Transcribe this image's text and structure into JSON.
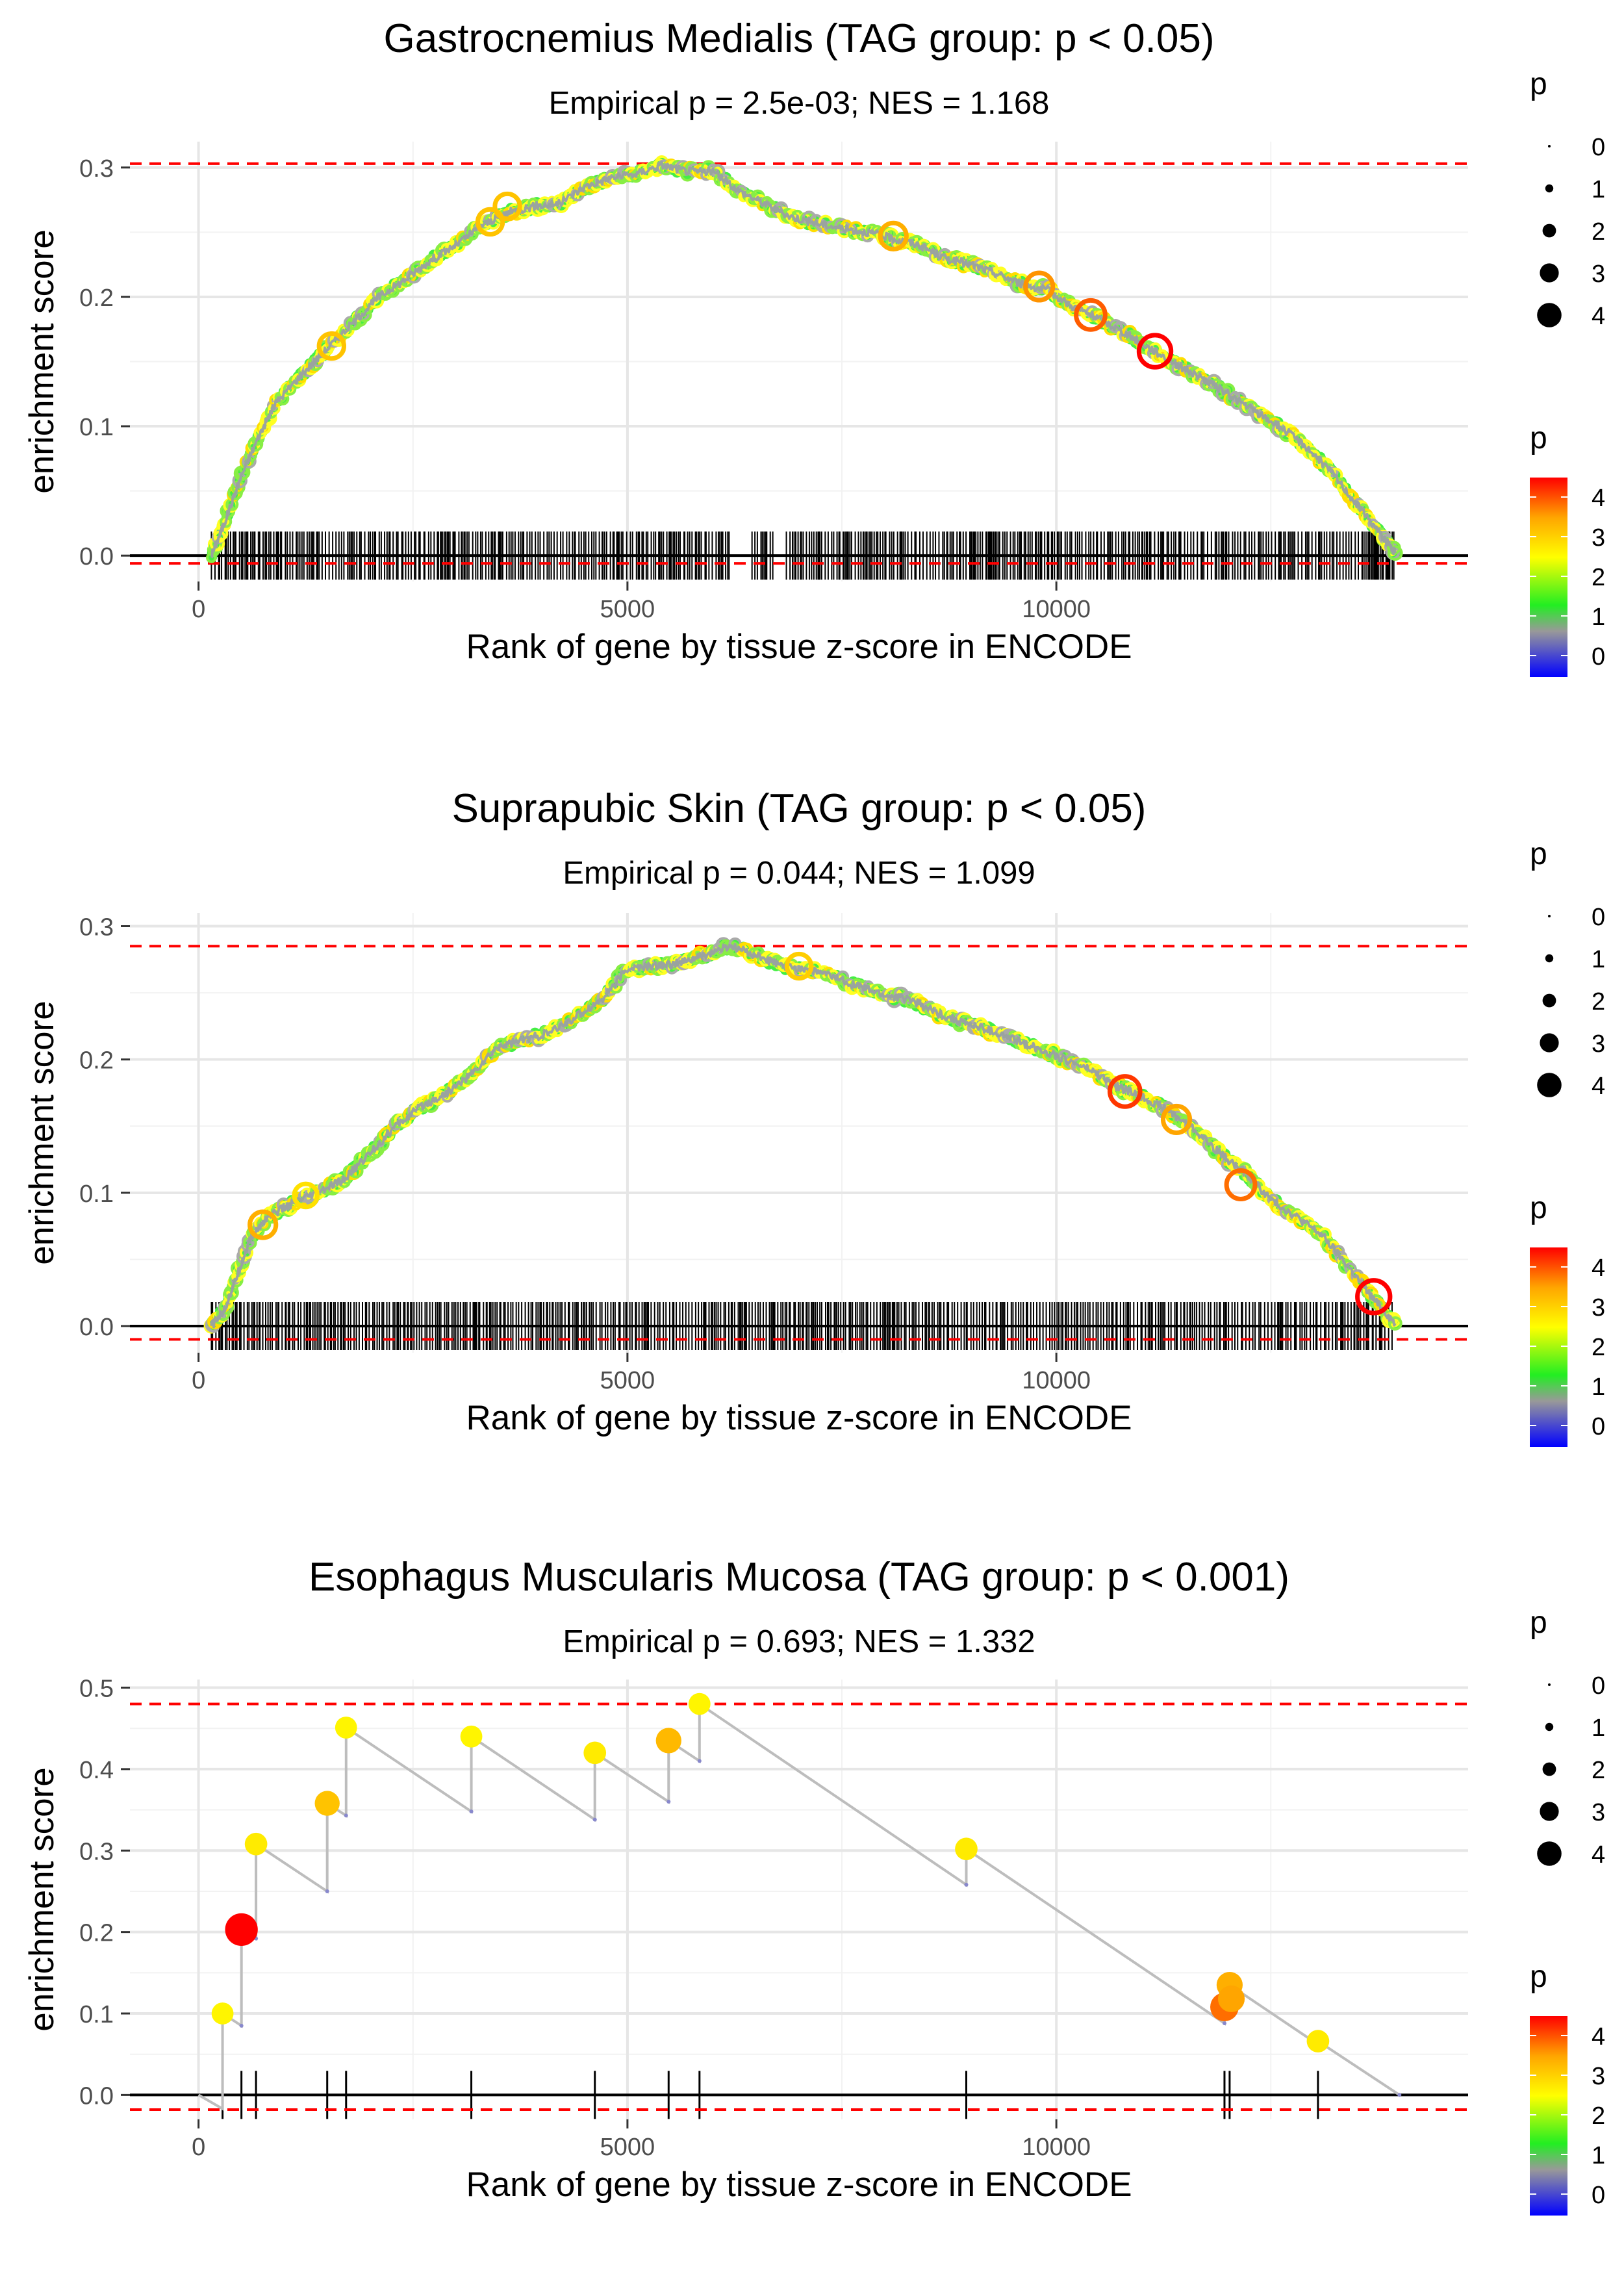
{
  "chart_data": [
    {
      "type": "line",
      "title": "Gastrocnemius Medialis (TAG group: p < 0.05)",
      "subtitle": "Empirical p = 2.5e-03; NES = 1.168",
      "xlabel": "Rank of gene by tissue z-score in ENCODE",
      "ylabel": "enrichment score",
      "xlim": [
        -800,
        14800
      ],
      "ylim": [
        -0.02,
        0.32
      ],
      "x_ticks": [
        0,
        5000,
        10000
      ],
      "x_tick_labels": [
        "0",
        "5000",
        "10000"
      ],
      "y_ticks": [
        0.0,
        0.1,
        0.2,
        0.3
      ],
      "y_tick_labels": [
        "0.0",
        "0.1",
        "0.2",
        "0.3"
      ],
      "hlines": {
        "max_es": 0.303,
        "min_es": -0.006
      },
      "dense": true,
      "x": [
        150,
        300,
        500,
        700,
        900,
        1200,
        1500,
        1800,
        2100,
        2400,
        2700,
        3000,
        3300,
        3600,
        3900,
        4200,
        4500,
        4800,
        5100,
        5400,
        5700,
        6000,
        6300,
        6600,
        6900,
        7200,
        7500,
        7800,
        8100,
        8400,
        8700,
        9000,
        9300,
        9600,
        9900,
        10200,
        10500,
        10800,
        11100,
        11400,
        11700,
        12000,
        12300,
        12600,
        12900,
        13200,
        13500,
        13800,
        13950
      ],
      "y": [
        0.0,
        0.025,
        0.062,
        0.092,
        0.118,
        0.14,
        0.16,
        0.18,
        0.2,
        0.213,
        0.228,
        0.24,
        0.255,
        0.265,
        0.27,
        0.272,
        0.285,
        0.292,
        0.295,
        0.302,
        0.297,
        0.297,
        0.282,
        0.272,
        0.262,
        0.257,
        0.253,
        0.25,
        0.245,
        0.24,
        0.23,
        0.225,
        0.218,
        0.21,
        0.205,
        0.192,
        0.183,
        0.172,
        0.16,
        0.148,
        0.137,
        0.125,
        0.112,
        0.1,
        0.085,
        0.065,
        0.04,
        0.015,
        0.002
      ],
      "highlight_points": [
        {
          "x": 1550,
          "y": 0.162,
          "p": 3.3
        },
        {
          "x": 3400,
          "y": 0.258,
          "p": 3.3
        },
        {
          "x": 3600,
          "y": 0.27,
          "p": 3.3
        },
        {
          "x": 8100,
          "y": 0.247,
          "p": 3.5
        },
        {
          "x": 9800,
          "y": 0.208,
          "p": 3.7
        },
        {
          "x": 10400,
          "y": 0.186,
          "p": 4.0
        },
        {
          "x": 11150,
          "y": 0.158,
          "p": 4.5
        }
      ],
      "rug_range": [
        150,
        13950
      ],
      "rug_gaps": [
        [
          6200,
          6450
        ],
        [
          6700,
          6850
        ]
      ],
      "legend_size": {
        "title": "p",
        "labels": [
          "0",
          "1",
          "2",
          "3",
          "4"
        ]
      },
      "legend_color": {
        "title": "p",
        "labels": [
          "4",
          "3",
          "2",
          "1",
          "0"
        ]
      }
    },
    {
      "type": "line",
      "title": "Suprapubic Skin (TAG group: p < 0.05)",
      "subtitle": "Empirical p = 0.044; NES = 1.099",
      "xlabel": "Rank of gene by tissue z-score in ENCODE",
      "ylabel": "enrichment score",
      "xlim": [
        -800,
        14800
      ],
      "ylim": [
        -0.02,
        0.31
      ],
      "x_ticks": [
        0,
        5000,
        10000
      ],
      "x_tick_labels": [
        "0",
        "5000",
        "10000"
      ],
      "y_ticks": [
        0.0,
        0.1,
        0.2,
        0.3
      ],
      "y_tick_labels": [
        "0.0",
        "0.1",
        "0.2",
        "0.3"
      ],
      "hlines": {
        "max_es": 0.285,
        "min_es": -0.01
      },
      "dense": true,
      "x": [
        150,
        300,
        450,
        600,
        800,
        1100,
        1400,
        1700,
        2000,
        2300,
        2600,
        2900,
        3200,
        3500,
        3800,
        4100,
        4400,
        4700,
        5000,
        5300,
        5600,
        5900,
        6200,
        6500,
        6800,
        7100,
        7400,
        7700,
        8000,
        8300,
        8600,
        8900,
        9200,
        9500,
        9800,
        10100,
        10400,
        10700,
        11000,
        11300,
        11600,
        11900,
        12200,
        12500,
        12800,
        13100,
        13400,
        13700,
        13950
      ],
      "y": [
        0.0,
        0.012,
        0.038,
        0.065,
        0.082,
        0.092,
        0.1,
        0.11,
        0.13,
        0.15,
        0.165,
        0.175,
        0.19,
        0.21,
        0.215,
        0.22,
        0.232,
        0.245,
        0.268,
        0.27,
        0.272,
        0.278,
        0.285,
        0.278,
        0.27,
        0.268,
        0.262,
        0.255,
        0.248,
        0.245,
        0.235,
        0.228,
        0.222,
        0.215,
        0.208,
        0.2,
        0.192,
        0.18,
        0.172,
        0.162,
        0.148,
        0.13,
        0.115,
        0.095,
        0.082,
        0.068,
        0.045,
        0.02,
        0.002
      ],
      "highlight_points": [
        {
          "x": 750,
          "y": 0.076,
          "p": 3.5
        },
        {
          "x": 1250,
          "y": 0.098,
          "p": 3.0
        },
        {
          "x": 7000,
          "y": 0.27,
          "p": 3.2
        },
        {
          "x": 10800,
          "y": 0.176,
          "p": 4.2
        },
        {
          "x": 11400,
          "y": 0.155,
          "p": 3.6
        },
        {
          "x": 12150,
          "y": 0.106,
          "p": 3.9
        },
        {
          "x": 13700,
          "y": 0.022,
          "p": 4.6
        }
      ],
      "rug_range": [
        150,
        13950
      ],
      "rug_gaps": [],
      "legend_size": {
        "title": "p",
        "labels": [
          "0",
          "1",
          "2",
          "3",
          "4"
        ]
      },
      "legend_color": {
        "title": "p",
        "labels": [
          "4",
          "3",
          "2",
          "1",
          "0"
        ]
      }
    },
    {
      "type": "line",
      "title": "Esophagus Muscularis Mucosa (TAG group: p < 0.001)",
      "subtitle": "Empirical p = 0.693; NES = 1.332",
      "xlabel": "Rank of gene by tissue z-score in ENCODE",
      "ylabel": "enrichment score",
      "xlim": [
        -800,
        14800
      ],
      "ylim": [
        -0.03,
        0.51
      ],
      "x_ticks": [
        0,
        5000,
        10000
      ],
      "x_tick_labels": [
        "0",
        "5000",
        "10000"
      ],
      "y_ticks": [
        0.0,
        0.1,
        0.2,
        0.3,
        0.4,
        0.5
      ],
      "y_tick_labels": [
        "0.0",
        "0.1",
        "0.2",
        "0.3",
        "0.4",
        "0.5"
      ],
      "hlines": {
        "max_es": 0.48,
        "min_es": -0.018
      },
      "dense": false,
      "path": [
        [
          0,
          0.0
        ],
        [
          280,
          -0.017
        ],
        [
          280,
          0.1
        ],
        [
          500,
          0.085
        ],
        [
          500,
          0.203
        ],
        [
          670,
          0.192
        ],
        [
          670,
          0.308
        ],
        [
          1500,
          0.25
        ],
        [
          1500,
          0.358
        ],
        [
          1720,
          0.343
        ],
        [
          1720,
          0.451
        ],
        [
          3180,
          0.348
        ],
        [
          3180,
          0.44
        ],
        [
          4620,
          0.338
        ],
        [
          4620,
          0.42
        ],
        [
          5480,
          0.36
        ],
        [
          5480,
          0.435
        ],
        [
          5840,
          0.41
        ],
        [
          5840,
          0.48
        ],
        [
          8950,
          0.258
        ],
        [
          8950,
          0.302
        ],
        [
          11960,
          0.088
        ],
        [
          11960,
          0.108
        ],
        [
          12020,
          0.104
        ],
        [
          12020,
          0.135
        ],
        [
          13050,
          0.062
        ],
        [
          13050,
          0.066
        ],
        [
          14000,
          0.0
        ]
      ],
      "points": [
        {
          "x": 280,
          "y": 0.1,
          "p": 2.8
        },
        {
          "x": 500,
          "y": 0.203,
          "p": 4.6
        },
        {
          "x": 670,
          "y": 0.308,
          "p": 2.9
        },
        {
          "x": 1500,
          "y": 0.358,
          "p": 3.3
        },
        {
          "x": 1720,
          "y": 0.451,
          "p": 2.8
        },
        {
          "x": 3180,
          "y": 0.44,
          "p": 2.8
        },
        {
          "x": 4620,
          "y": 0.42,
          "p": 2.9
        },
        {
          "x": 5480,
          "y": 0.435,
          "p": 3.4
        },
        {
          "x": 5840,
          "y": 0.48,
          "p": 2.8
        },
        {
          "x": 8950,
          "y": 0.302,
          "p": 2.9
        },
        {
          "x": 11960,
          "y": 0.108,
          "p": 3.9
        },
        {
          "x": 12020,
          "y": 0.135,
          "p": 3.5
        },
        {
          "x": 12040,
          "y": 0.118,
          "p": 3.6
        },
        {
          "x": 13050,
          "y": 0.066,
          "p": 2.9
        }
      ],
      "rug": [
        280,
        500,
        670,
        1500,
        1720,
        3180,
        4620,
        5480,
        5840,
        8950,
        11960,
        12020,
        13050
      ],
      "legend_size": {
        "title": "p",
        "labels": [
          "0",
          "1",
          "2",
          "3",
          "4"
        ]
      },
      "legend_color": {
        "title": "p",
        "labels": [
          "4",
          "3",
          "2",
          "1",
          "0"
        ]
      }
    }
  ]
}
